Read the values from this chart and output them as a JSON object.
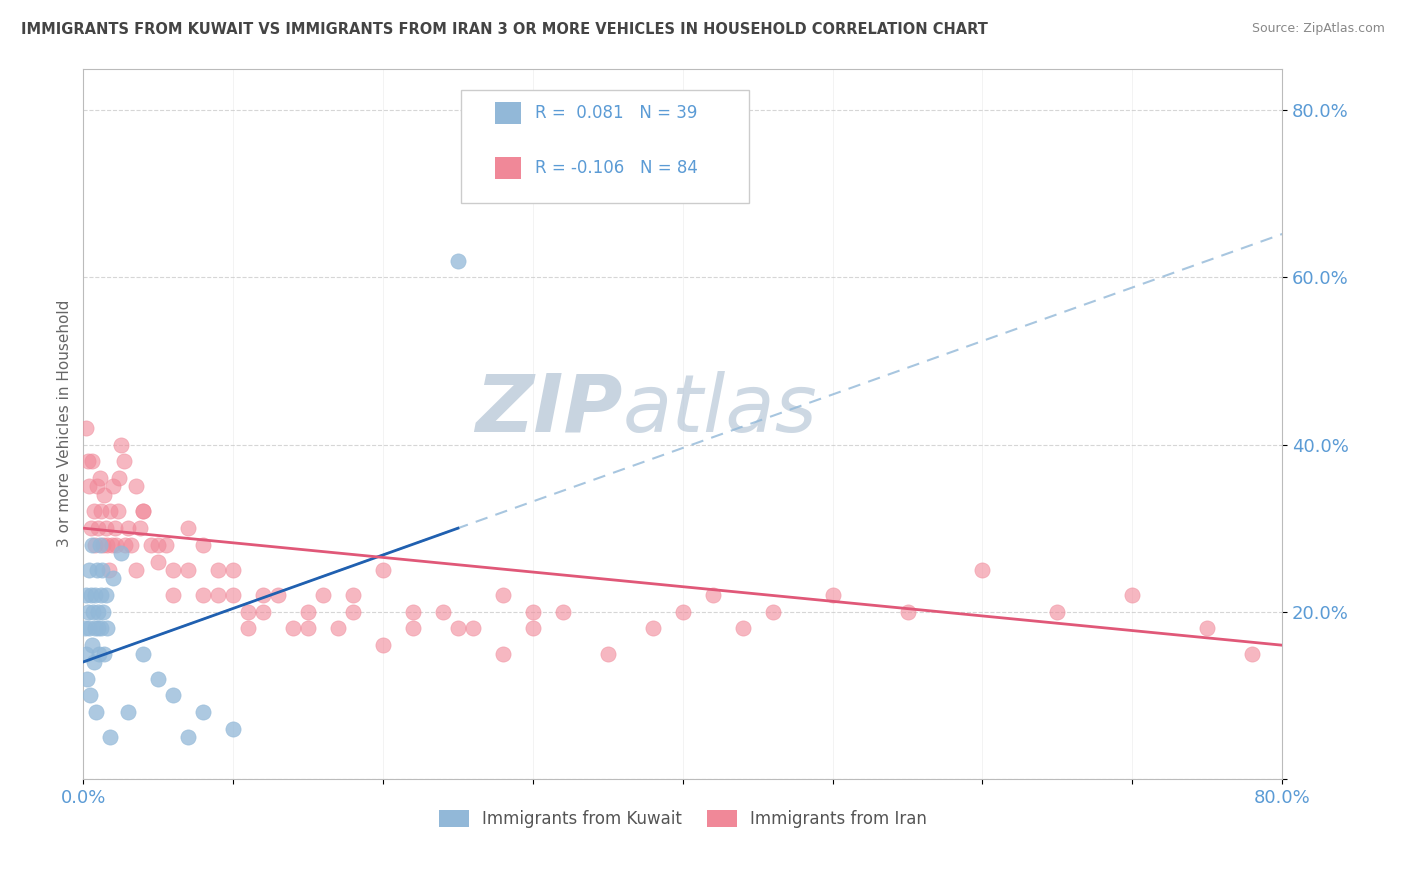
{
  "title": "IMMIGRANTS FROM KUWAIT VS IMMIGRANTS FROM IRAN 3 OR MORE VEHICLES IN HOUSEHOLD CORRELATION CHART",
  "source": "Source: ZipAtlas.com",
  "legend_label1": "Immigrants from Kuwait",
  "legend_label2": "Immigrants from Iran",
  "ylabel_label": "3 or more Vehicles in Household",
  "R1": 0.081,
  "N1": 39,
  "R2": -0.106,
  "N2": 84,
  "color_kuwait": "#92b8d8",
  "color_iran": "#f08898",
  "color_kuwait_line": "#2060b0",
  "color_iran_line": "#e05878",
  "watermark_color": "#ccd8e8",
  "bg_color": "#ffffff",
  "title_color": "#444444",
  "axis_label_color": "#5b9bd5",
  "xmin": 0.0,
  "xmax": 80.0,
  "ymin": 0.0,
  "ymax": 85.0,
  "kuwait_x": [
    0.1,
    0.15,
    0.2,
    0.25,
    0.3,
    0.35,
    0.4,
    0.45,
    0.5,
    0.55,
    0.6,
    0.65,
    0.7,
    0.75,
    0.8,
    0.85,
    0.9,
    0.95,
    1.0,
    1.05,
    1.1,
    1.15,
    1.2,
    1.25,
    1.3,
    1.4,
    1.5,
    1.6,
    1.8,
    2.0,
    2.5,
    3.0,
    4.0,
    5.0,
    6.0,
    7.0,
    8.0,
    10.0,
    25.0
  ],
  "kuwait_y": [
    18.0,
    22.0,
    15.0,
    12.0,
    20.0,
    25.0,
    18.0,
    10.0,
    22.0,
    16.0,
    28.0,
    20.0,
    14.0,
    18.0,
    22.0,
    8.0,
    25.0,
    18.0,
    20.0,
    15.0,
    28.0,
    22.0,
    18.0,
    25.0,
    20.0,
    15.0,
    22.0,
    18.0,
    5.0,
    24.0,
    27.0,
    8.0,
    15.0,
    12.0,
    10.0,
    5.0,
    8.0,
    6.0,
    62.0
  ],
  "iran_x": [
    0.2,
    0.3,
    0.4,
    0.5,
    0.6,
    0.7,
    0.8,
    0.9,
    1.0,
    1.1,
    1.2,
    1.3,
    1.4,
    1.5,
    1.6,
    1.7,
    1.8,
    1.9,
    2.0,
    2.1,
    2.2,
    2.3,
    2.4,
    2.5,
    2.7,
    2.8,
    3.0,
    3.2,
    3.5,
    3.8,
    4.0,
    4.5,
    5.0,
    5.5,
    6.0,
    7.0,
    8.0,
    9.0,
    10.0,
    11.0,
    12.0,
    13.0,
    14.0,
    15.0,
    16.0,
    17.0,
    18.0,
    20.0,
    22.0,
    24.0,
    26.0,
    28.0,
    30.0,
    32.0,
    35.0,
    38.0,
    40.0,
    42.0,
    44.0,
    46.0,
    50.0,
    55.0,
    60.0,
    65.0,
    70.0,
    75.0,
    78.0,
    3.5,
    4.0,
    5.0,
    6.0,
    7.0,
    8.0,
    9.0,
    10.0,
    11.0,
    12.0,
    15.0,
    18.0,
    20.0,
    22.0,
    25.0,
    28.0,
    30.0
  ],
  "iran_y": [
    42.0,
    38.0,
    35.0,
    30.0,
    38.0,
    32.0,
    28.0,
    35.0,
    30.0,
    36.0,
    32.0,
    28.0,
    34.0,
    30.0,
    28.0,
    25.0,
    32.0,
    28.0,
    35.0,
    30.0,
    28.0,
    32.0,
    36.0,
    40.0,
    38.0,
    28.0,
    30.0,
    28.0,
    25.0,
    30.0,
    32.0,
    28.0,
    26.0,
    28.0,
    22.0,
    25.0,
    22.0,
    25.0,
    22.0,
    18.0,
    20.0,
    22.0,
    18.0,
    20.0,
    22.0,
    18.0,
    20.0,
    16.0,
    18.0,
    20.0,
    18.0,
    15.0,
    18.0,
    20.0,
    15.0,
    18.0,
    20.0,
    22.0,
    18.0,
    20.0,
    22.0,
    20.0,
    25.0,
    20.0,
    22.0,
    18.0,
    15.0,
    35.0,
    32.0,
    28.0,
    25.0,
    30.0,
    28.0,
    22.0,
    25.0,
    20.0,
    22.0,
    18.0,
    22.0,
    25.0,
    20.0,
    18.0,
    22.0,
    20.0
  ],
  "kuwait_line_x0": 0.0,
  "kuwait_line_y0": 14.0,
  "kuwait_line_x1": 25.0,
  "kuwait_line_y1": 30.0,
  "iran_line_x0": 0.0,
  "iran_line_y0": 30.0,
  "iran_line_x1": 80.0,
  "iran_line_y1": 16.0
}
